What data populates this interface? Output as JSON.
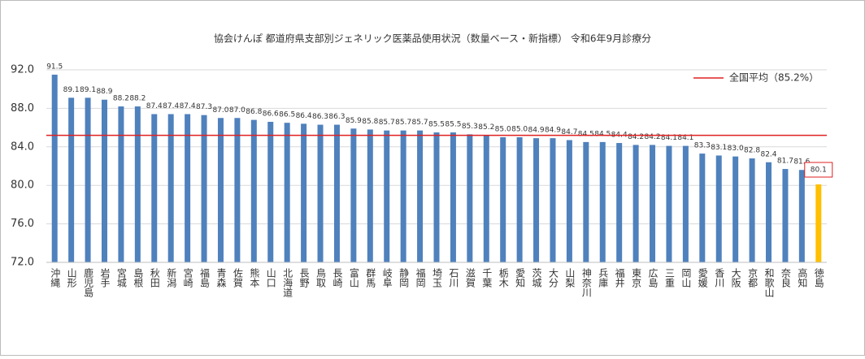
{
  "chart_data": {
    "type": "bar",
    "title": "協会けんぽ 都道府県支部別ジェネリック医薬品使用状況（数量ベース・新指標） 令和6年9月診療分",
    "categories": [
      "沖縄",
      "山形",
      "鹿児島",
      "岩手",
      "宮城",
      "島根",
      "秋田",
      "新潟",
      "宮崎",
      "福島",
      "青森",
      "佐賀",
      "熊本",
      "山口",
      "北海道",
      "長野",
      "鳥取",
      "長崎",
      "富山",
      "群馬",
      "岐阜",
      "静岡",
      "福岡",
      "埼玉",
      "石川",
      "滋賀",
      "千葉",
      "栃木",
      "愛知",
      "茨城",
      "大分",
      "山梨",
      "神奈川",
      "兵庫",
      "福井",
      "東京",
      "広島",
      "三重",
      "岡山",
      "愛媛",
      "香川",
      "大阪",
      "京都",
      "和歌山",
      "奈良",
      "高知",
      "徳島"
    ],
    "values": [
      91.5,
      89.1,
      89.1,
      88.9,
      88.2,
      88.2,
      87.4,
      87.4,
      87.4,
      87.3,
      87.0,
      87.0,
      86.8,
      86.6,
      86.5,
      86.4,
      86.3,
      86.3,
      85.9,
      85.8,
      85.7,
      85.7,
      85.7,
      85.5,
      85.5,
      85.3,
      85.2,
      85.0,
      85.0,
      84.9,
      84.9,
      84.7,
      84.5,
      84.5,
      84.4,
      84.2,
      84.2,
      84.1,
      84.1,
      83.3,
      83.1,
      83.0,
      82.8,
      82.4,
      81.7,
      81.6,
      80.1
    ],
    "value_labels": [
      "91.5",
      "89.1",
      "89.1",
      "88.9",
      "88.2",
      "88.2",
      "87.4",
      "87.4",
      "87.4",
      "87.3",
      "87.0",
      "87.0",
      "86.8",
      "86.6",
      "86.5",
      "86.4",
      "86.3",
      "86.3",
      "85.9",
      "85.8",
      "85.7",
      "85.7",
      "85.7",
      "85.5",
      "85.5",
      "85.3",
      "85.2",
      "85.0",
      "85.0",
      "84.9",
      "84.9",
      "84.7",
      "84.5",
      "84.5",
      "84.4",
      "84.2",
      "84.2",
      "84.1",
      "84.1",
      "83.3",
      "83.1",
      "83.0",
      "82.8",
      "82.4",
      "81.7",
      "81.6",
      "80.1"
    ],
    "color": "#4f81bd",
    "highlight_index": 46,
    "highlight_color": "#ffc000",
    "reference_line": {
      "value": 85.2,
      "label": "全国平均（85.2%）",
      "color": "#e02020"
    },
    "ylim": [
      72,
      92
    ],
    "yticks": [
      {
        "value": 72,
        "label": "72.0"
      },
      {
        "value": 76,
        "label": "76.0"
      },
      {
        "value": 80,
        "label": "80.0"
      },
      {
        "value": 84,
        "label": "84.0"
      },
      {
        "value": 88,
        "label": "88.0"
      },
      {
        "value": 92,
        "label": "92.0"
      }
    ],
    "grid": true
  }
}
